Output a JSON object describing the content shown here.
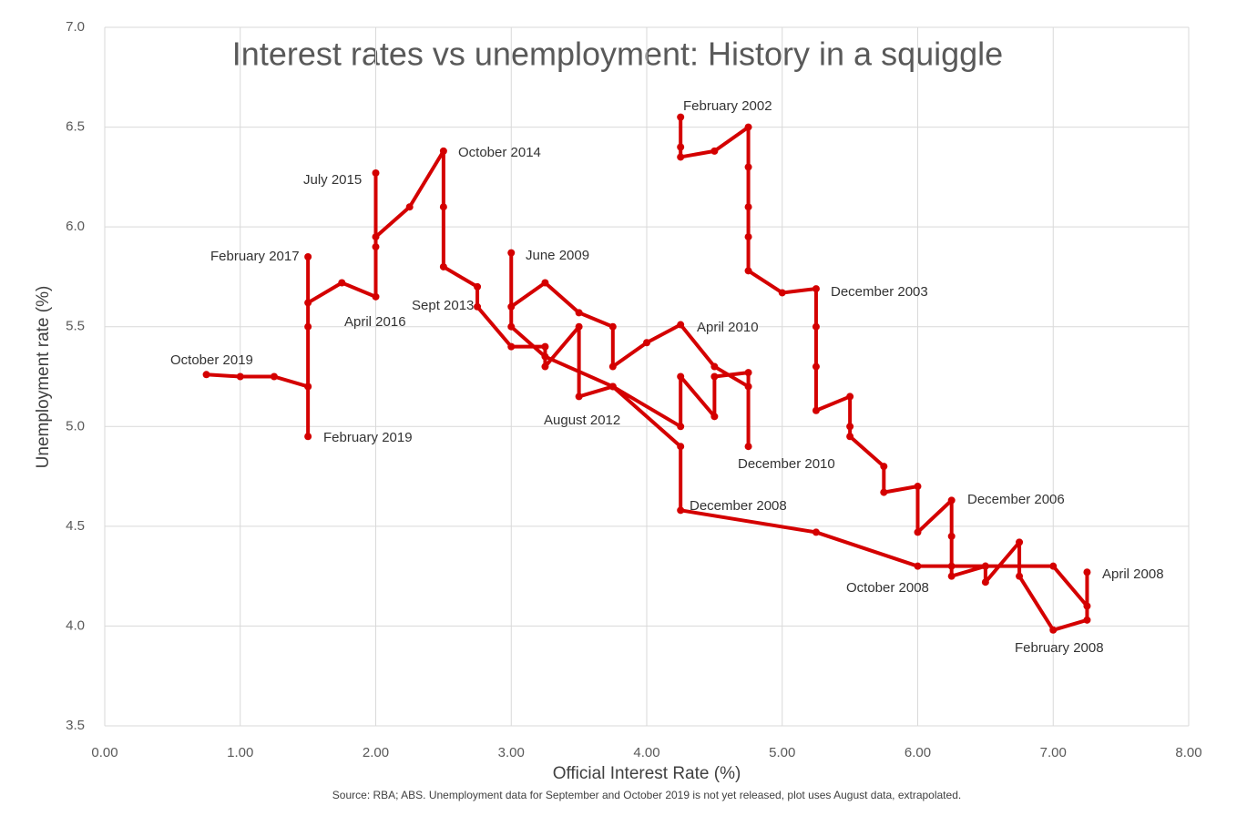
{
  "chart_data": {
    "type": "line",
    "title": "Interest rates vs unemployment: History in a squiggle",
    "x_label": "Official Interest Rate (%)",
    "y_label": "Unemployment rate (%)",
    "source": "Source: RBA; ABS. Unemployment data for September and October 2019 is not yet released, plot uses August data, extrapolated.",
    "series": [
      {
        "color": "#d40000",
        "x": [
          4.25,
          4.25,
          4.25,
          4.5,
          4.75,
          4.75,
          4.75,
          4.75,
          4.75,
          5.0,
          5.25,
          5.25,
          5.25,
          5.25,
          5.5,
          5.5,
          5.5,
          5.75,
          5.75,
          6.0,
          6.0,
          6.25,
          6.25,
          6.25,
          6.5,
          6.5,
          6.75,
          6.75,
          7.0,
          7.25,
          7.25,
          7.25,
          7.0,
          6.5,
          6.25,
          6.0,
          5.25,
          4.25,
          4.25,
          3.75,
          3.25,
          3.0,
          3.0,
          3.0,
          3.25,
          3.5,
          3.75,
          3.75,
          4.0,
          4.25,
          4.5,
          4.75,
          4.75,
          4.75,
          4.5,
          4.5,
          4.25,
          4.25,
          3.75,
          3.5,
          3.5,
          3.25,
          3.25,
          3.0,
          2.75,
          2.75,
          2.5,
          2.5,
          2.5,
          2.25,
          2.0,
          2.0,
          2.0,
          2.0,
          1.75,
          1.5,
          1.5,
          1.5,
          1.5,
          1.5,
          1.5,
          1.25,
          1.0,
          0.75
        ],
        "values": [
          6.55,
          6.4,
          6.35,
          6.38,
          6.5,
          6.3,
          6.1,
          5.95,
          5.78,
          5.67,
          5.69,
          5.5,
          5.3,
          5.08,
          5.15,
          5.0,
          4.95,
          4.8,
          4.67,
          4.7,
          4.47,
          4.63,
          4.45,
          4.25,
          4.3,
          4.22,
          4.42,
          4.25,
          3.98,
          4.03,
          4.27,
          4.1,
          4.3,
          4.3,
          4.3,
          4.3,
          4.47,
          4.58,
          4.9,
          5.2,
          5.35,
          5.5,
          5.87,
          5.6,
          5.72,
          5.57,
          5.5,
          5.3,
          5.42,
          5.51,
          5.3,
          5.2,
          4.9,
          5.27,
          5.25,
          5.05,
          5.25,
          5.0,
          5.2,
          5.15,
          5.5,
          5.3,
          5.4,
          5.4,
          5.6,
          5.7,
          5.8,
          6.1,
          6.38,
          6.1,
          5.95,
          6.27,
          5.9,
          5.65,
          5.72,
          5.62,
          5.85,
          5.5,
          5.2,
          4.95,
          5.2,
          5.25,
          5.25,
          5.26
        ]
      }
    ],
    "annotations": [
      "February 2002",
      "October 2014",
      "July 2015",
      "February 2017",
      "June 2009",
      "December 2003",
      "Sept 2013",
      "April 2016",
      "April 2010",
      "October 2019",
      "August 2012",
      "February 2019",
      "December 2010",
      "December 2008",
      "December 2006",
      "April 2008",
      "October 2008",
      "February 2008"
    ],
    "xlim": [
      0,
      8
    ],
    "xticks": [
      {
        "value": 0,
        "label": "0.00"
      },
      {
        "value": 1,
        "label": "1.00"
      },
      {
        "value": 2,
        "label": "2.00"
      },
      {
        "value": 3,
        "label": "3.00"
      },
      {
        "value": 4,
        "label": "4.00"
      },
      {
        "value": 5,
        "label": "5.00"
      },
      {
        "value": 6,
        "label": "6.00"
      },
      {
        "value": 7,
        "label": "7.00"
      },
      {
        "value": 8,
        "label": "8.00"
      }
    ],
    "ylim": [
      3.5,
      7.0
    ],
    "yticks": [
      3.5,
      {
        "value": 4,
        "label": "4.0"
      },
      4.5,
      {
        "value": 5,
        "label": "5.0"
      },
      5.5,
      {
        "value": 6,
        "label": "6.0"
      },
      6.5,
      {
        "value": 7,
        "label": "7.0"
      }
    ],
    "grid": true
  }
}
